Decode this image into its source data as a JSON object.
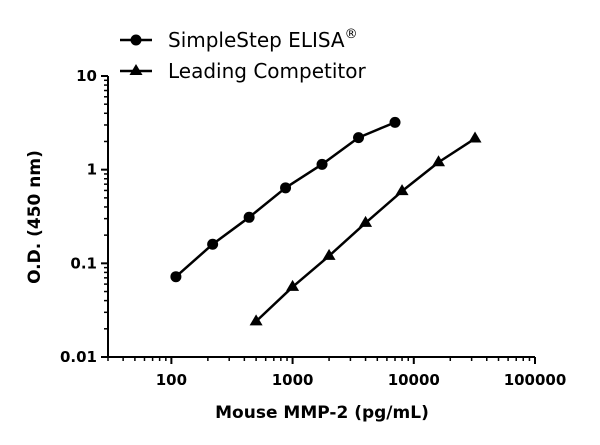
{
  "chart_data": {
    "type": "line",
    "xlabel": "Mouse MMP-2 (pg/mL)",
    "ylabel": "O.D. (450 nm)",
    "xscale": "log",
    "yscale": "log",
    "xlim": [
      30,
      100000
    ],
    "ylim": [
      0.01,
      10
    ],
    "xticks": [
      "100",
      "1000",
      "10000",
      "100000"
    ],
    "yticks": [
      "0.01",
      "0.1",
      "1",
      "10"
    ],
    "grid": false,
    "legend_position": "top-left",
    "series": [
      {
        "name": "SimpleStep ELISA",
        "name_suffix": "®",
        "marker": "circle",
        "x": [
          109,
          219,
          438,
          875,
          1750,
          3500,
          7000
        ],
        "y": [
          0.072,
          0.16,
          0.31,
          0.64,
          1.14,
          2.2,
          3.2
        ]
      },
      {
        "name": "Leading Competitor",
        "marker": "triangle",
        "x": [
          500,
          1000,
          2000,
          4000,
          8000,
          16000,
          32000
        ],
        "y": [
          0.024,
          0.056,
          0.12,
          0.27,
          0.59,
          1.2,
          2.15
        ]
      }
    ]
  }
}
